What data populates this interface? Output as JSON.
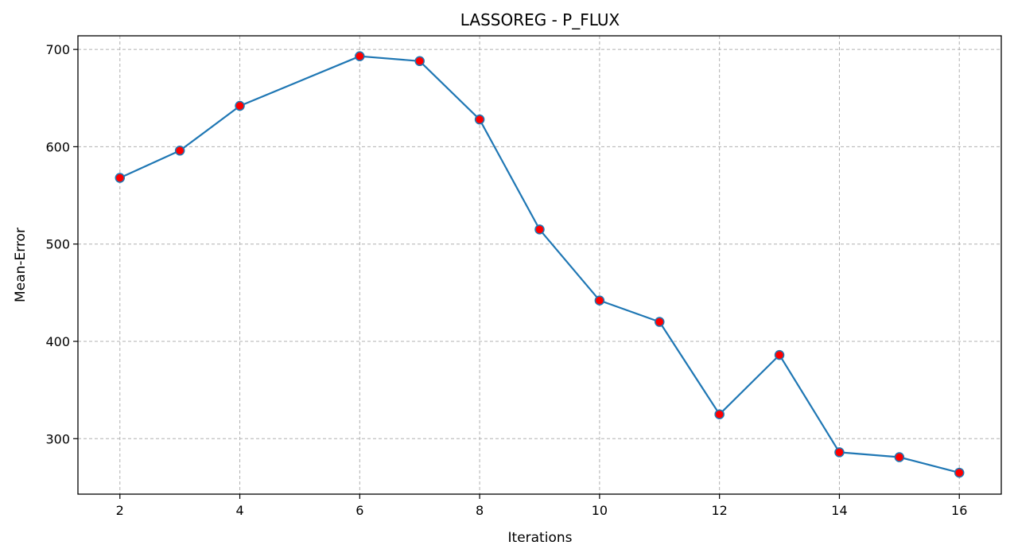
{
  "chart_data": {
    "type": "line",
    "title": "LASSOREG - P_FLUX",
    "xlabel": "Iterations",
    "ylabel": "Mean-Error",
    "xlim": [
      1.3,
      16.7
    ],
    "ylim": [
      243,
      714
    ],
    "xticks": [
      2,
      4,
      6,
      8,
      10,
      12,
      14,
      16
    ],
    "yticks": [
      300,
      400,
      500,
      600,
      700
    ],
    "grid": true,
    "series": [
      {
        "x": [
          2,
          3,
          4,
          6,
          7,
          8,
          9,
          10,
          11,
          12,
          13,
          14,
          15,
          16
        ],
        "values": [
          568,
          596,
          642,
          693,
          688,
          628,
          515,
          442,
          420,
          325,
          386,
          286,
          281,
          265
        ]
      }
    ],
    "colors": {
      "line": "#1f77b4",
      "marker_fill": "#ff0000",
      "marker_edge": "#1f77b4",
      "grid": "#b0b0b0"
    }
  }
}
